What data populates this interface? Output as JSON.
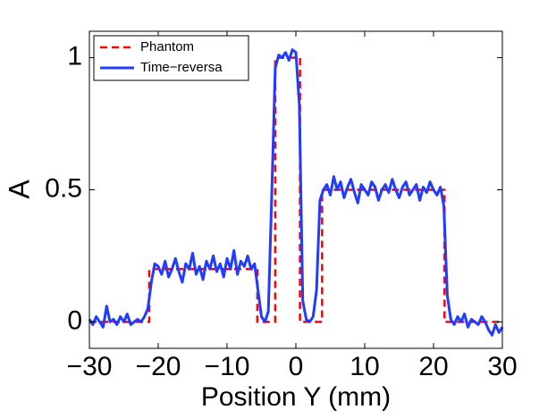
{
  "chart_data": {
    "type": "line",
    "xlabel": "Position Y (mm)",
    "ylabel": "A",
    "xlim": [
      -30,
      30
    ],
    "ylim": [
      -0.1,
      1.1
    ],
    "xticks": [
      {
        "value": -30,
        "label": "−30"
      },
      {
        "value": -20,
        "label": "−20"
      },
      {
        "value": -10,
        "label": "−10"
      },
      0,
      10,
      20,
      30
    ],
    "yticks": [
      0,
      0.5,
      1
    ],
    "legend": "upper left",
    "series": [
      {
        "name": "Phantom",
        "color": "#ff0000",
        "dashed": true,
        "x": [
          -30,
          -21.3,
          -21.3,
          -5.6,
          -5.6,
          -3,
          -3,
          0.6,
          0.6,
          3.8,
          3.8,
          21.6,
          21.6,
          30
        ],
        "values": [
          0,
          0,
          0.2,
          0.2,
          0,
          0,
          1,
          1,
          0,
          0,
          0.5,
          0.5,
          0,
          0
        ]
      },
      {
        "name": "Time−reversa",
        "color": "#1f3cff",
        "dashed": false,
        "x": [
          -30,
          -29.5,
          -29,
          -28.5,
          -28,
          -27.5,
          -27,
          -26.5,
          -26,
          -25.5,
          -25,
          -24.5,
          -24,
          -23.5,
          -23,
          -22.5,
          -22,
          -21.5,
          -21,
          -20.5,
          -20,
          -19.5,
          -19,
          -18.5,
          -18,
          -17.5,
          -17,
          -16.5,
          -16,
          -15.5,
          -15,
          -14.5,
          -14,
          -13.5,
          -13,
          -12.5,
          -12,
          -11.5,
          -11,
          -10.5,
          -10,
          -9.5,
          -9,
          -8.5,
          -8,
          -7.5,
          -7,
          -6.5,
          -6,
          -5.5,
          -5,
          -4.5,
          -4,
          -3.5,
          -3,
          -2.5,
          -2,
          -1.5,
          -1,
          -0.5,
          0,
          0.5,
          1,
          1.5,
          2,
          2.5,
          3,
          3.5,
          4,
          4.5,
          5,
          5.5,
          6,
          6.5,
          7,
          7.5,
          8,
          8.5,
          9,
          9.5,
          10,
          10.5,
          11,
          11.5,
          12,
          12.5,
          13,
          13.5,
          14,
          14.5,
          15,
          15.5,
          16,
          16.5,
          17,
          17.5,
          18,
          18.5,
          19,
          19.5,
          20,
          20.5,
          21,
          21.5,
          22,
          22.5,
          23,
          23.5,
          24,
          24.5,
          25,
          25.5,
          26,
          26.5,
          27,
          27.5,
          28,
          28.5,
          29,
          29.5,
          30
        ],
        "values": [
          0.01,
          -0.01,
          0.02,
          0.0,
          -0.02,
          0.06,
          0.0,
          0.01,
          -0.01,
          0.02,
          0.0,
          0.03,
          -0.01,
          0.0,
          0.01,
          0.0,
          0.02,
          0.05,
          0.15,
          0.22,
          0.21,
          0.18,
          0.23,
          0.17,
          0.2,
          0.24,
          0.19,
          0.15,
          0.22,
          0.2,
          0.26,
          0.18,
          0.21,
          0.16,
          0.23,
          0.2,
          0.25,
          0.19,
          0.22,
          0.17,
          0.24,
          0.2,
          0.27,
          0.18,
          0.23,
          0.21,
          0.25,
          0.2,
          0.22,
          0.12,
          0.02,
          0.0,
          0.04,
          0.48,
          0.96,
          1.01,
          1.0,
          1.02,
          0.99,
          1.03,
          1.02,
          0.82,
          0.08,
          0.01,
          0.0,
          0.02,
          0.12,
          0.46,
          0.5,
          0.52,
          0.48,
          0.55,
          0.5,
          0.53,
          0.47,
          0.51,
          0.54,
          0.49,
          0.45,
          0.52,
          0.5,
          0.48,
          0.53,
          0.51,
          0.46,
          0.5,
          0.52,
          0.49,
          0.54,
          0.5,
          0.47,
          0.51,
          0.53,
          0.48,
          0.5,
          0.52,
          0.46,
          0.51,
          0.49,
          0.53,
          0.5,
          0.48,
          0.51,
          0.44,
          0.1,
          0.01,
          -0.01,
          0.02,
          0.0,
          0.03,
          -0.02,
          0.01,
          0.0,
          -0.01,
          0.02,
          0.0,
          -0.03,
          -0.05,
          -0.01,
          -0.04,
          -0.02
        ]
      }
    ]
  }
}
